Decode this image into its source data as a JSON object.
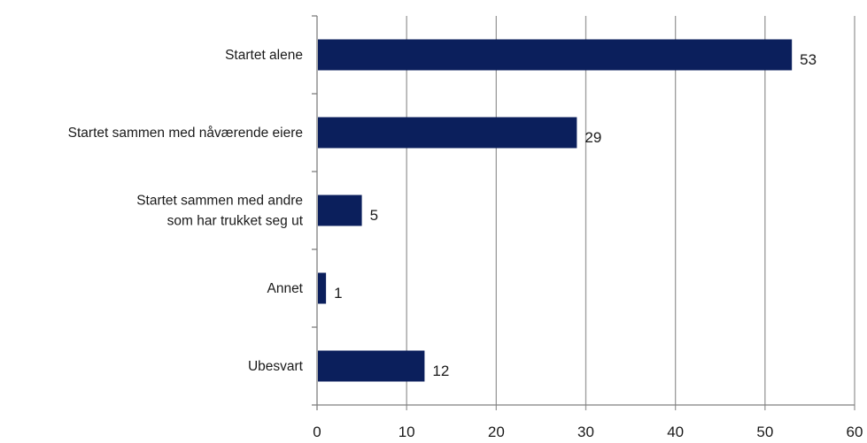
{
  "chart_data": {
    "type": "bar",
    "orientation": "horizontal",
    "categories": [
      "Startet alene",
      "Startet sammen med nåværende eiere",
      "Startet sammen med andre som har trukket seg ut",
      "Annet",
      "Ubesvart"
    ],
    "category_lines": [
      [
        "Startet alene"
      ],
      [
        "Startet sammen med nåværende eiere"
      ],
      [
        "Startet sammen med andre",
        "som har trukket seg ut"
      ],
      [
        "Annet"
      ],
      [
        "Ubesvart"
      ]
    ],
    "values": [
      53,
      29,
      5,
      1,
      12
    ],
    "data_labels": [
      "53",
      "29",
      "5",
      "1",
      "12"
    ],
    "xlim": [
      0,
      60
    ],
    "xticks": [
      0,
      10,
      20,
      30,
      40,
      50,
      60
    ],
    "xtick_labels": [
      "0",
      "10",
      "20",
      "30",
      "40",
      "50",
      "60"
    ],
    "title": "",
    "xlabel": "",
    "ylabel": "",
    "grid": "vertical",
    "legend": "none",
    "bar_color": "#0b1f5c",
    "grid_color": "#9a9a9a",
    "axis_color": "#808080"
  }
}
